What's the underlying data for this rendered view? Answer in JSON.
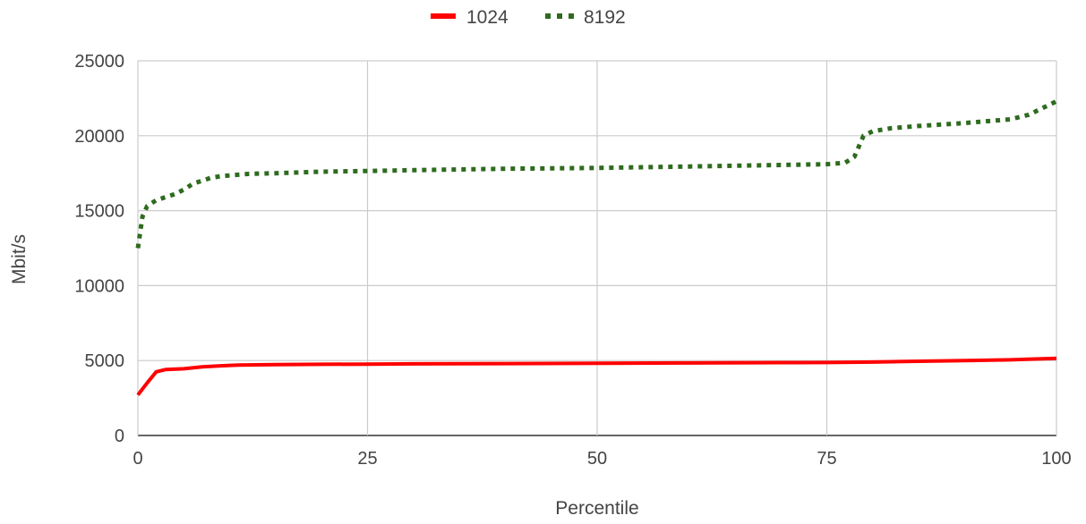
{
  "chart_data": {
    "type": "line",
    "title": "",
    "xlabel": "Percentile",
    "ylabel": "Mbit/s",
    "xlim": [
      0,
      100
    ],
    "ylim": [
      0,
      25000
    ],
    "xticks": [
      0,
      25,
      50,
      75,
      100
    ],
    "yticks": [
      0,
      5000,
      10000,
      15000,
      20000,
      25000
    ],
    "grid": true,
    "legend_position": "top-center",
    "series": [
      {
        "name": "1024",
        "color": "#ff0000",
        "style": "solid",
        "x": [
          0,
          1,
          2,
          3,
          5,
          7,
          9,
          11,
          15,
          20,
          25,
          30,
          40,
          50,
          60,
          70,
          75,
          80,
          85,
          90,
          95,
          100
        ],
        "y": [
          2700,
          3500,
          4250,
          4400,
          4450,
          4580,
          4650,
          4700,
          4730,
          4750,
          4760,
          4780,
          4800,
          4820,
          4840,
          4860,
          4870,
          4900,
          4950,
          5000,
          5050,
          5150
        ]
      },
      {
        "name": "8192",
        "color": "#2e6b1e",
        "style": "dotted",
        "x": [
          0,
          0.5,
          1,
          2,
          3,
          4,
          5,
          6,
          7,
          8,
          9,
          10,
          12,
          15,
          20,
          25,
          30,
          40,
          50,
          60,
          70,
          75,
          77,
          78,
          79,
          80,
          82,
          85,
          90,
          95,
          97,
          100
        ],
        "y": [
          12500,
          14600,
          15300,
          15700,
          15900,
          16100,
          16400,
          16800,
          17000,
          17200,
          17300,
          17350,
          17450,
          17500,
          17600,
          17650,
          17700,
          17800,
          17850,
          17950,
          18050,
          18100,
          18200,
          18600,
          20000,
          20300,
          20500,
          20650,
          20850,
          21100,
          21400,
          22300
        ]
      }
    ]
  }
}
